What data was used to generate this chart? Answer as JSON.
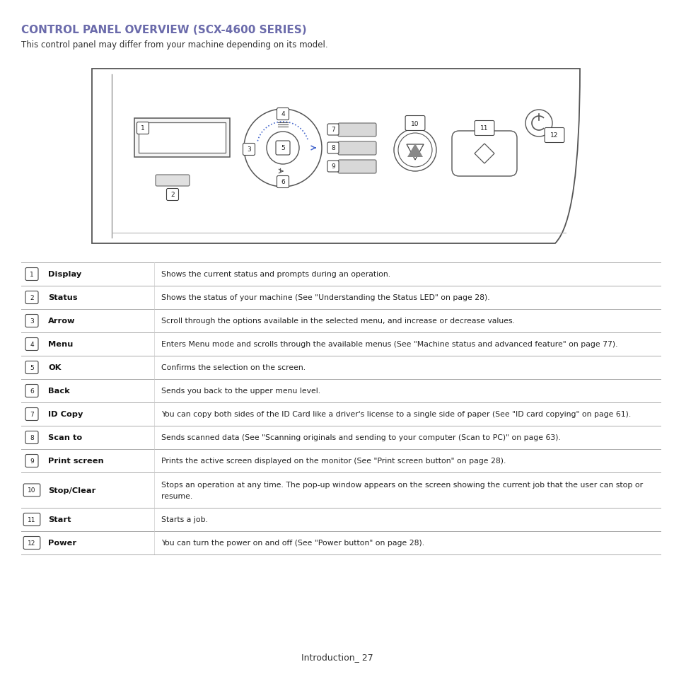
{
  "title": "CONTROL PANEL OVERVIEW (SCX-4600 SERIES)",
  "title_color": "#6b6bab",
  "subtitle": "This control panel may differ from your machine depending on its model.",
  "footer": "Introduction_ 27",
  "bg_color": "#ffffff",
  "table_rows": [
    {
      "num": "1",
      "label": "Display",
      "desc": "Shows the current status and prompts during an operation."
    },
    {
      "num": "2",
      "label": "Status",
      "desc": "Shows the status of your machine (See \"Understanding the Status LED\" on page 28)."
    },
    {
      "num": "3",
      "label": "Arrow",
      "desc": "Scroll through the options available in the selected menu, and increase or decrease values."
    },
    {
      "num": "4",
      "label": "Menu",
      "desc": "Enters Menu mode and scrolls through the available menus (See \"Machine status and advanced feature\" on page 77)."
    },
    {
      "num": "5",
      "label": "OK",
      "desc": "Confirms the selection on the screen."
    },
    {
      "num": "6",
      "label": "Back",
      "desc": "Sends you back to the upper menu level."
    },
    {
      "num": "7",
      "label": "ID Copy",
      "desc": "You can copy both sides of the ID Card like a driver's license to a single side of paper (See \"ID card copying\" on page 61)."
    },
    {
      "num": "8",
      "label": "Scan to",
      "desc": "Sends scanned data (See \"Scanning originals and sending to your computer (Scan to PC)\" on page 63)."
    },
    {
      "num": "9",
      "label": "Print screen",
      "desc": "Prints the active screen displayed on the monitor (See \"Print screen button\" on page 28)."
    },
    {
      "num": "10",
      "label": "Stop/Clear",
      "desc": "Stops an operation at any time. The pop-up window appears on the screen showing the current job that the user can stop or\nresume."
    },
    {
      "num": "11",
      "label": "Start",
      "desc": "Starts a job."
    },
    {
      "num": "12",
      "label": "Power",
      "desc": "You can turn the power on and off (See \"Power button\" on page 28)."
    }
  ]
}
